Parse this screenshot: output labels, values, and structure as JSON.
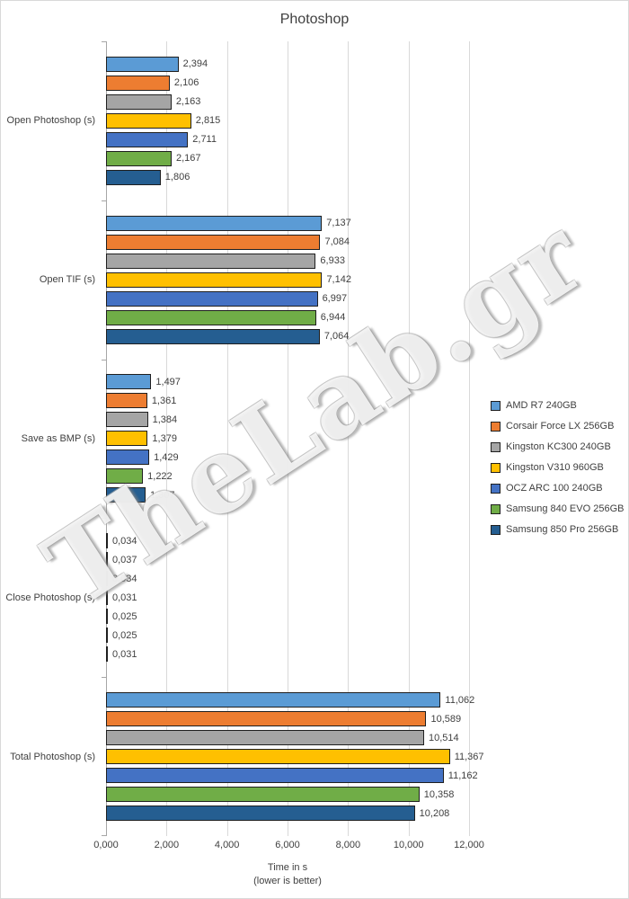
{
  "title": "Photoshop",
  "watermark": "TheLab.gr",
  "x_axis": {
    "title_line1": "Time in s",
    "title_line2": "(lower is better)",
    "max": 12,
    "ticks": [
      {
        "value": 0,
        "label": "0,000"
      },
      {
        "value": 2,
        "label": "2,000"
      },
      {
        "value": 4,
        "label": "4,000"
      },
      {
        "value": 6,
        "label": "6,000"
      },
      {
        "value": 8,
        "label": "8,000"
      },
      {
        "value": 10,
        "label": "10,000"
      },
      {
        "value": 12,
        "label": "12,000"
      }
    ]
  },
  "chart_data": {
    "type": "bar",
    "orientation": "horizontal",
    "title": "Photoshop",
    "xlabel": "Time in s (lower is better)",
    "xlim": [
      0,
      12
    ],
    "grid": true,
    "legend_position": "right",
    "categories": [
      "Open Photoshop (s)",
      "Open TIF (s)",
      "Save as BMP (s)",
      "Close Photoshop (s)",
      "Total Photoshop (s)"
    ],
    "series": [
      {
        "name": "AMD R7 240GB",
        "color": "#5B9BD5",
        "values": [
          "2,394",
          "7,137",
          "1,497",
          "0,034",
          "11,062"
        ]
      },
      {
        "name": "Corsair Force LX 256GB",
        "color": "#ED7D31",
        "values": [
          "2,106",
          "7,084",
          "1,361",
          "0,037",
          "10,589"
        ]
      },
      {
        "name": "Kingston KC300 240GB",
        "color": "#A5A5A5",
        "values": [
          "2,163",
          "6,933",
          "1,384",
          "0,034",
          "10,514"
        ]
      },
      {
        "name": "Kingston V310 960GB",
        "color": "#FFC000",
        "values": [
          "2,815",
          "7,142",
          "1,379",
          "0,031",
          "11,367"
        ]
      },
      {
        "name": "OCZ ARC 100 240GB",
        "color": "#4472C4",
        "values": [
          "2,711",
          "6,997",
          "1,429",
          "0,025",
          "11,162"
        ]
      },
      {
        "name": "Samsung 840 EVO 256GB",
        "color": "#70AD47",
        "values": [
          "2,167",
          "6,944",
          "1,222",
          "0,025",
          "10,358"
        ]
      },
      {
        "name": "Samsung 850 Pro 256GB",
        "color": "#255E91",
        "values": [
          "1,806",
          "7,064",
          "1,307",
          "0,031",
          "10,208"
        ]
      }
    ]
  }
}
